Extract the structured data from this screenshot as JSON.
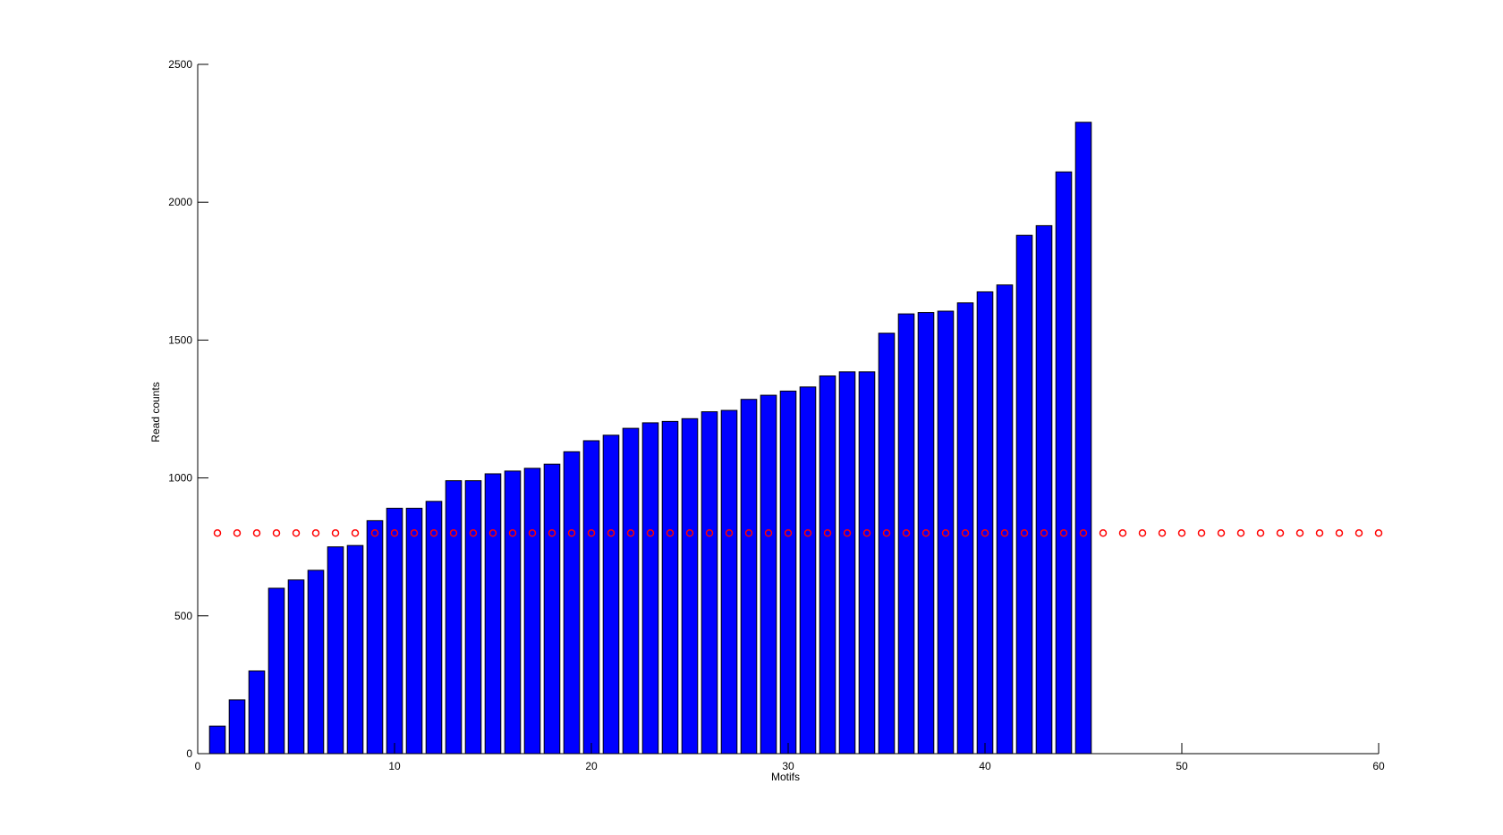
{
  "chart_data": {
    "type": "bar",
    "title": "",
    "xlabel": "Motifs",
    "ylabel": "Read counts",
    "xlim": [
      0,
      60
    ],
    "ylim": [
      0,
      2500
    ],
    "xticks": [
      0,
      10,
      20,
      30,
      40,
      50,
      60
    ],
    "yticks": [
      0,
      500,
      1000,
      1500,
      2000,
      2500
    ],
    "grid": false,
    "bars": {
      "color": "#0000ff",
      "x": [
        1,
        2,
        3,
        4,
        5,
        6,
        7,
        8,
        9,
        10,
        11,
        12,
        13,
        14,
        15,
        16,
        17,
        18,
        19,
        20,
        21,
        22,
        23,
        24,
        25,
        26,
        27,
        28,
        29,
        30,
        31,
        32,
        33,
        34,
        35,
        36,
        37,
        38,
        39,
        40,
        41,
        42,
        43,
        44,
        45
      ],
      "values": [
        100,
        195,
        300,
        600,
        630,
        665,
        750,
        755,
        845,
        890,
        890,
        915,
        990,
        990,
        1015,
        1025,
        1035,
        1050,
        1095,
        1135,
        1155,
        1180,
        1200,
        1205,
        1215,
        1240,
        1245,
        1285,
        1300,
        1315,
        1330,
        1370,
        1385,
        1385,
        1525,
        1595,
        1600,
        1605,
        1635,
        1675,
        1700,
        1880,
        1915,
        2110,
        2290
      ]
    },
    "markers": {
      "style": "circle",
      "color": "#ff0000",
      "x": [
        1,
        2,
        3,
        4,
        5,
        6,
        7,
        8,
        9,
        10,
        11,
        12,
        13,
        14,
        15,
        16,
        17,
        18,
        19,
        20,
        21,
        22,
        23,
        24,
        25,
        26,
        27,
        28,
        29,
        30,
        31,
        32,
        33,
        34,
        35,
        36,
        37,
        38,
        39,
        40,
        41,
        42,
        43,
        44,
        45,
        46,
        47,
        48,
        49,
        50,
        51,
        52,
        53,
        54,
        55,
        56,
        57,
        58,
        59,
        60
      ],
      "value": 800
    }
  }
}
